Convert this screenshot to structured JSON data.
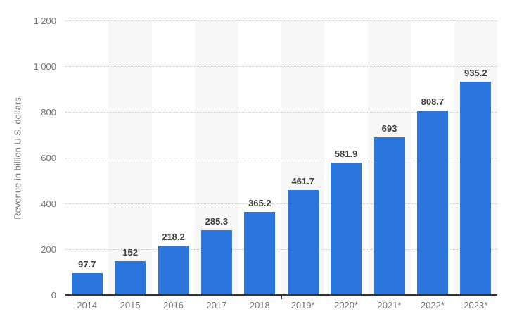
{
  "chart_data": {
    "type": "bar",
    "title": "",
    "xlabel": "",
    "ylabel": "Revenue in billion U.S. dollars",
    "categories": [
      "2014",
      "2015",
      "2016",
      "2017",
      "2018",
      "2019*",
      "2020*",
      "2021*",
      "2022*",
      "2023*"
    ],
    "values": [
      97.7,
      152,
      218.2,
      285.3,
      365.2,
      461.7,
      581.9,
      693,
      808.7,
      935.2
    ],
    "value_labels": [
      "97.7",
      "152",
      "218.2",
      "285.3",
      "365.2",
      "461.7",
      "581.9",
      "693",
      "808.7",
      "935.2"
    ],
    "ylim": [
      0,
      1200
    ],
    "ytick_step": 200,
    "ytick_labels": [
      "0",
      "200",
      "400",
      "600",
      "800",
      "1 000",
      "1 200"
    ],
    "grid": "horizontal-dotted",
    "legend": "none",
    "alternating_column_bands": true,
    "colors": {
      "bar": "#2a76dd",
      "value_label": "#404040",
      "axis_text": "#767676",
      "gridline": "#cccccc",
      "band": "#f7f7f7",
      "axis_line": "#333333",
      "background": "#ffffff"
    }
  }
}
